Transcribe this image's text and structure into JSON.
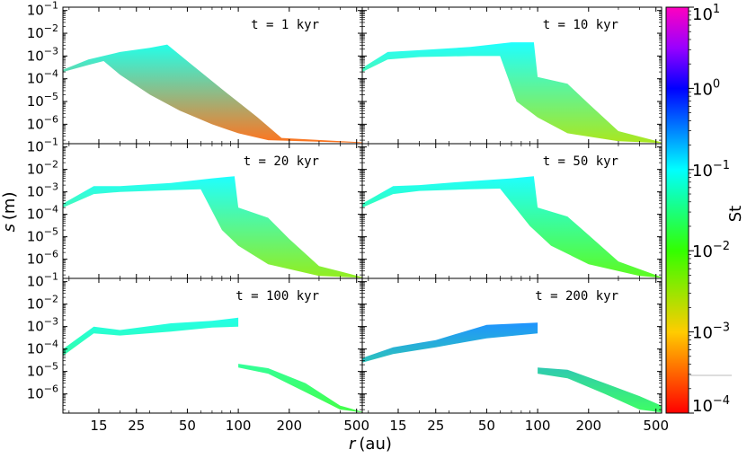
{
  "figure_title": "",
  "chart_data": {
    "type": "scatter",
    "layout": "3x2 panel grid sharing axes",
    "xlabel_var": "r",
    "xlabel_unit": "(au)",
    "ylabel_var": "s",
    "ylabel_unit": "(m)",
    "xscale": "log",
    "yscale": "log",
    "xlim": [
      9.2,
      540
    ],
    "ylim": [
      1.4e-07,
      0.14
    ],
    "x_ticks": [
      {
        "value": 15,
        "label": "15"
      },
      {
        "value": 25,
        "label": "25"
      },
      {
        "value": 50,
        "label": "50"
      },
      {
        "value": 100,
        "label": "100"
      },
      {
        "value": 200,
        "label": "200"
      },
      {
        "value": 500,
        "label": "500"
      }
    ],
    "y_ticks": [
      {
        "value": 1e-06,
        "base": "10",
        "exp": "−6"
      },
      {
        "value": 1e-05,
        "base": "10",
        "exp": "−5"
      },
      {
        "value": 0.0001,
        "base": "10",
        "exp": "−4"
      },
      {
        "value": 0.001,
        "base": "10",
        "exp": "−3"
      },
      {
        "value": 0.01,
        "base": "10",
        "exp": "−2"
      },
      {
        "value": 0.1,
        "base": "10",
        "exp": "−1"
      }
    ],
    "colorbar": {
      "label": "St",
      "scale": "log",
      "range": [
        0.0001,
        10
      ],
      "colormap": "gist_rainbow_r",
      "ticks": [
        {
          "value": 10,
          "base": "10",
          "exp": "1"
        },
        {
          "value": 1,
          "base": "10",
          "exp": "0"
        },
        {
          "value": 0.1,
          "base": "10",
          "exp": "−1"
        },
        {
          "value": 0.01,
          "base": "10",
          "exp": "−2"
        },
        {
          "value": 0.001,
          "base": "10",
          "exp": "−3"
        },
        {
          "value": 0.0001,
          "base": "10",
          "exp": "−4"
        }
      ]
    },
    "panels": [
      {
        "label": "t = 1 kyr",
        "row": 0,
        "col": 0,
        "upper": [
          [
            9.2,
            0.00025
          ],
          [
            13,
            0.0007
          ],
          [
            20,
            0.0015
          ],
          [
            30,
            0.0023
          ],
          [
            38,
            0.0032
          ],
          [
            50,
            0.0006
          ],
          [
            80,
            3.5e-05
          ],
          [
            130,
            2e-06
          ],
          [
            180,
            2.5e-07
          ],
          [
            540,
            1.6e-07
          ]
        ],
        "lower": [
          [
            9.2,
            0.0002
          ],
          [
            13,
            0.0004
          ],
          [
            16,
            0.0006
          ],
          [
            20,
            0.00015
          ],
          [
            30,
            2e-05
          ],
          [
            45,
            4e-06
          ],
          [
            70,
            1e-06
          ],
          [
            100,
            4e-07
          ],
          [
            150,
            2e-07
          ],
          [
            540,
            1.5e-07
          ]
        ],
        "st_top": 0.08,
        "st_bottom": 0.0003
      },
      {
        "label": "t = 10 kyr",
        "row": 0,
        "col": 1,
        "upper": [
          [
            9.2,
            0.0003
          ],
          [
            13,
            0.0015
          ],
          [
            20,
            0.0018
          ],
          [
            40,
            0.0025
          ],
          [
            70,
            0.004
          ],
          [
            95,
            0.004
          ],
          [
            100,
            0.00012
          ],
          [
            150,
            6e-05
          ],
          [
            200,
            8e-06
          ],
          [
            300,
            5e-07
          ],
          [
            540,
            1.6e-07
          ]
        ],
        "lower": [
          [
            9.2,
            0.0002
          ],
          [
            13,
            0.0007
          ],
          [
            20,
            0.0009
          ],
          [
            40,
            0.001
          ],
          [
            60,
            0.001
          ],
          [
            75,
            1e-05
          ],
          [
            100,
            2e-06
          ],
          [
            150,
            4e-07
          ],
          [
            300,
            1.8e-07
          ],
          [
            540,
            1.5e-07
          ]
        ],
        "st_top": 0.1,
        "st_bottom": 0.003
      },
      {
        "label": "t = 20 kyr",
        "row": 1,
        "col": 0,
        "upper": [
          [
            9.2,
            0.0003
          ],
          [
            14,
            0.0018
          ],
          [
            20,
            0.0018
          ],
          [
            40,
            0.0025
          ],
          [
            70,
            0.004
          ],
          [
            95,
            0.005
          ],
          [
            100,
            0.0002
          ],
          [
            150,
            7e-05
          ],
          [
            200,
            8e-06
          ],
          [
            300,
            5e-07
          ],
          [
            540,
            1.6e-07
          ]
        ],
        "lower": [
          [
            9.2,
            0.0002
          ],
          [
            14,
            0.0008
          ],
          [
            20,
            0.001
          ],
          [
            40,
            0.0012
          ],
          [
            60,
            0.0013
          ],
          [
            80,
            2e-05
          ],
          [
            100,
            4e-06
          ],
          [
            150,
            6e-07
          ],
          [
            300,
            1.8e-07
          ],
          [
            540,
            1.5e-07
          ]
        ],
        "st_top": 0.1,
        "st_bottom": 0.004
      },
      {
        "label": "t = 50 kyr",
        "row": 1,
        "col": 1,
        "upper": [
          [
            9.2,
            0.0003
          ],
          [
            14,
            0.0018
          ],
          [
            20,
            0.002
          ],
          [
            40,
            0.003
          ],
          [
            70,
            0.004
          ],
          [
            95,
            0.005
          ],
          [
            100,
            0.0002
          ],
          [
            150,
            8e-05
          ],
          [
            200,
            1.2e-05
          ],
          [
            300,
            8e-07
          ],
          [
            540,
            1.6e-07
          ]
        ],
        "lower": [
          [
            9.2,
            0.0002
          ],
          [
            14,
            0.0008
          ],
          [
            20,
            0.0011
          ],
          [
            40,
            0.0013
          ],
          [
            60,
            0.0014
          ],
          [
            90,
            3e-05
          ],
          [
            120,
            4e-06
          ],
          [
            200,
            6e-07
          ],
          [
            400,
            1.8e-07
          ],
          [
            540,
            1.5e-07
          ]
        ],
        "st_top": 0.1,
        "st_bottom": 0.008
      },
      {
        "label": "t = 100 kyr",
        "row": 2,
        "col": 0,
        "upper": [
          [
            9.2,
            0.0001
          ],
          [
            14,
            0.001
          ],
          [
            20,
            0.0007
          ],
          [
            40,
            0.0014
          ],
          [
            70,
            0.0018
          ],
          [
            100,
            0.0025
          ],
          [
            100,
            2.2e-05
          ],
          [
            150,
            1.4e-05
          ],
          [
            250,
            3e-06
          ],
          [
            400,
            3e-07
          ],
          [
            540,
            1.6e-07
          ]
        ],
        "lower": [
          [
            9.2,
            5e-05
          ],
          [
            14,
            0.0005
          ],
          [
            20,
            0.0004
          ],
          [
            40,
            0.0006
          ],
          [
            70,
            0.0009
          ],
          [
            100,
            0.001
          ],
          [
            100,
            1.5e-05
          ],
          [
            150,
            8e-06
          ],
          [
            250,
            1.2e-06
          ],
          [
            400,
            2e-07
          ],
          [
            540,
            1.5e-07
          ]
        ],
        "st_top": 0.08,
        "st_bottom": 0.015
      },
      {
        "label": "t = 200 kyr",
        "row": 2,
        "col": 1,
        "upper": [
          [
            9.2,
            4e-05
          ],
          [
            14,
            0.00012
          ],
          [
            25,
            0.00025
          ],
          [
            50,
            0.0012
          ],
          [
            100,
            0.0015
          ],
          [
            100,
            1.5e-05
          ],
          [
            150,
            1.2e-05
          ],
          [
            250,
            3e-06
          ],
          [
            400,
            8e-07
          ],
          [
            540,
            3e-07
          ]
        ],
        "lower": [
          [
            9.2,
            2.5e-05
          ],
          [
            14,
            6e-05
          ],
          [
            25,
            0.00012
          ],
          [
            50,
            0.0003
          ],
          [
            100,
            0.0005
          ],
          [
            100,
            8e-06
          ],
          [
            150,
            5e-06
          ],
          [
            250,
            1e-06
          ],
          [
            400,
            2e-07
          ],
          [
            540,
            1.5e-07
          ]
        ],
        "st_top": 0.3,
        "st_bottom": 0.02
      }
    ]
  }
}
